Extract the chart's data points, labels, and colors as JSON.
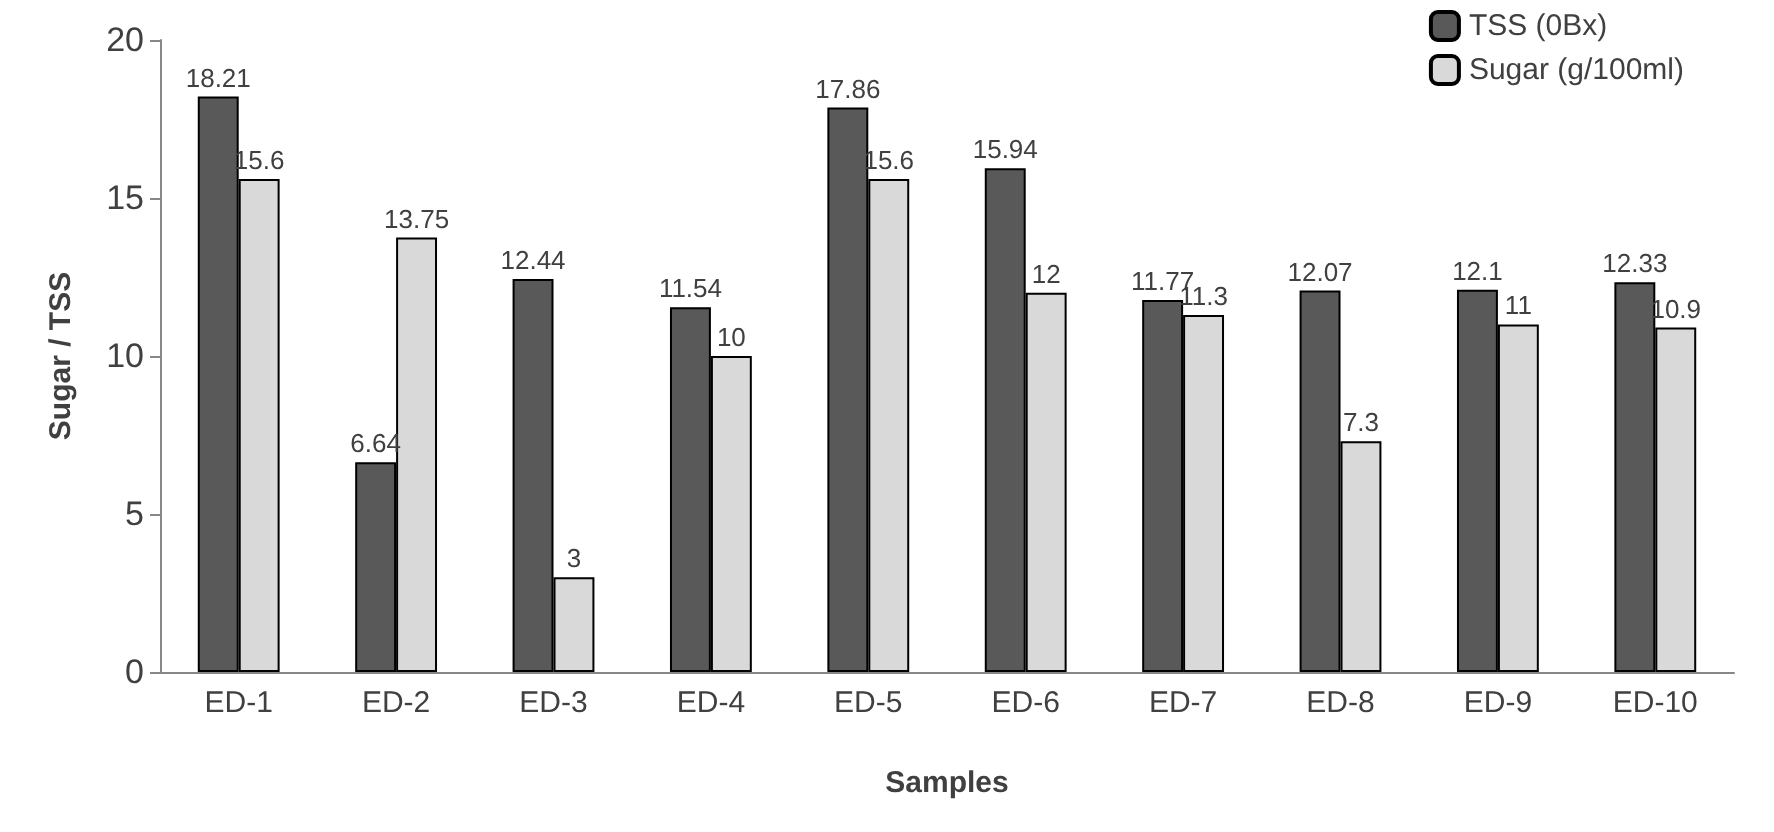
{
  "chart_data": {
    "type": "bar",
    "xlabel": "Samples",
    "ylabel": "Sugar / TSS",
    "categories": [
      "ED-1",
      "ED-2",
      "ED-3",
      "ED-4",
      "ED-5",
      "ED-6",
      "ED-7",
      "ED-8",
      "ED-9",
      "ED-10"
    ],
    "series": [
      {
        "name": "TSS (0Bx)",
        "color": "#595959",
        "values": [
          18.21,
          6.64,
          12.44,
          11.54,
          17.86,
          15.94,
          11.77,
          12.07,
          12.1,
          12.33
        ]
      },
      {
        "name": "Sugar (g/100ml)",
        "color": "#d9d9d9",
        "values": [
          15.6,
          13.75,
          3,
          10,
          15.6,
          12,
          11.3,
          7.3,
          11,
          10.9
        ]
      }
    ],
    "ylim": [
      0,
      20
    ],
    "yticks": [
      0,
      5,
      10,
      15,
      20
    ],
    "grid": false,
    "legend": "top right",
    "data_labels": true
  }
}
